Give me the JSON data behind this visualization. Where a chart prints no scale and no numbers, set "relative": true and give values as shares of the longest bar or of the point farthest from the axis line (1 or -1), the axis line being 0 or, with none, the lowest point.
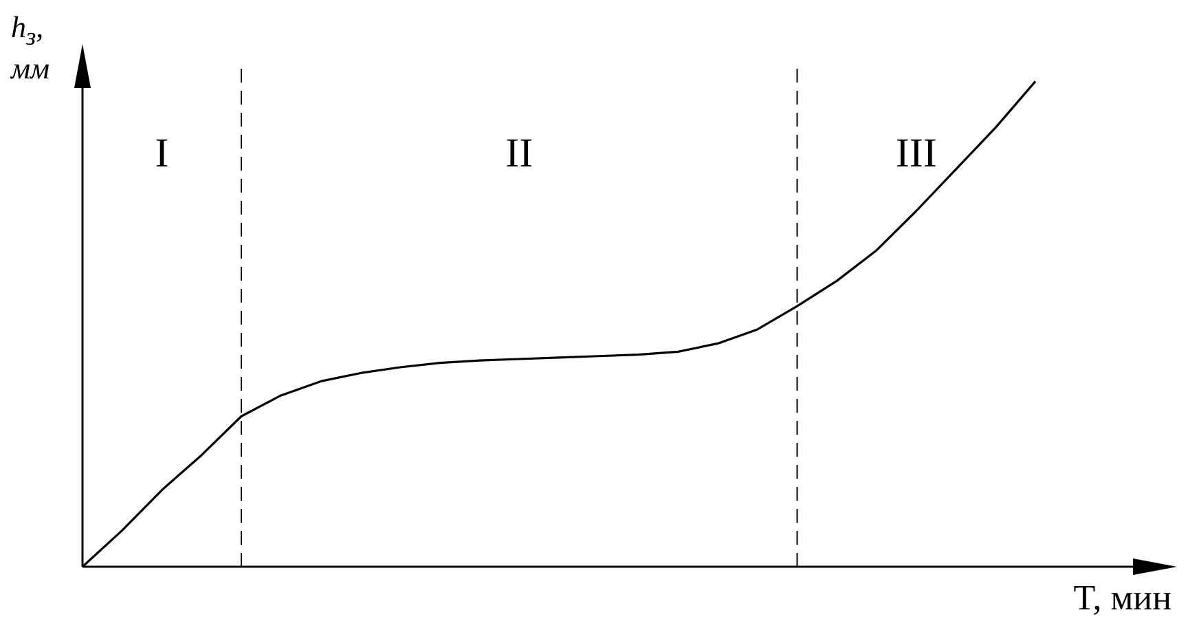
{
  "chart_data": {
    "type": "line",
    "xlabel": "T, мин",
    "ylabel": "h$_{з}$, мм",
    "relative": true,
    "tick_labels": false,
    "marker": "none",
    "categories": [
      null,
      null,
      null,
      null,
      null,
      null,
      null,
      null,
      null,
      null,
      null,
      null,
      null,
      null,
      null,
      null,
      null,
      null,
      null,
      null,
      null,
      null,
      null,
      null,
      null
    ],
    "series": [
      {
        "color": "#000000",
        "values": [
          0,
          0.075,
          0.158,
          0.23,
          0.31,
          0.353,
          0.382,
          0.399,
          0.411,
          0.42,
          0.425,
          0.428,
          0.431,
          0.434,
          0.437,
          0.443,
          0.46,
          0.489,
          0.537,
          0.589,
          0.652,
          0.733,
          0.819,
          0.905,
          1
        ]
      }
    ],
    "annotations": [
      "I",
      "II",
      "III"
    ]
  }
}
